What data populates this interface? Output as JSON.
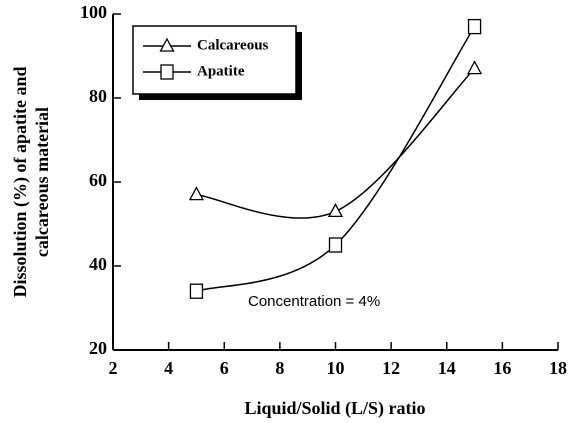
{
  "chart_data": {
    "type": "line",
    "xlabel": "Liquid/Solid (L/S) ratio",
    "ylabel": [
      "Dissolution (%) of apatite and",
      "calcareous material"
    ],
    "x": [
      5,
      10,
      15
    ],
    "series": [
      {
        "name": "Calcareous",
        "marker": "triangle",
        "color": "#000000",
        "values": [
          57,
          53,
          87
        ]
      },
      {
        "name": "Apatite",
        "marker": "square",
        "color": "#000000",
        "values": [
          34,
          45,
          97
        ]
      }
    ],
    "xlim": [
      2,
      18
    ],
    "xticks": [
      2,
      4,
      6,
      8,
      10,
      12,
      14,
      16,
      18
    ],
    "ylim": [
      20,
      100
    ],
    "yticks": [
      20,
      40,
      60,
      80,
      100
    ],
    "annotation": "Concentration = 4%",
    "legend": "upper left"
  }
}
